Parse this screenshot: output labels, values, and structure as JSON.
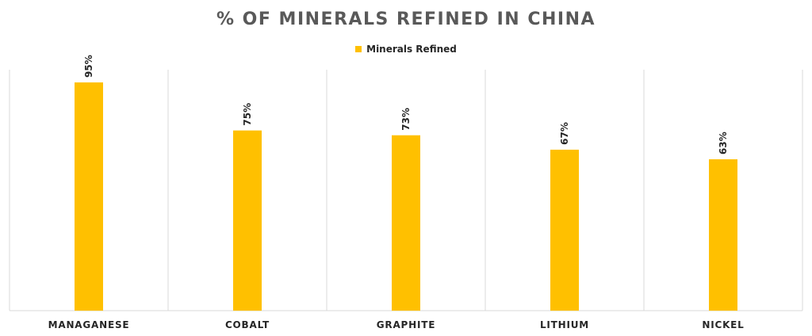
{
  "chart_data": {
    "type": "bar",
    "title": "% OF MINERALS REFINED IN CHINA",
    "categories": [
      "MANAGANESE",
      "COBALT",
      "GRAPHITE",
      "LITHIUM",
      "NICKEL"
    ],
    "series": [
      {
        "name": "Minerals Refined",
        "values": [
          95,
          75,
          73,
          67,
          63
        ],
        "labels": [
          "95%",
          "75%",
          "73%",
          "67%",
          "63%"
        ],
        "color": "#FFC000"
      }
    ],
    "ylim": [
      0,
      100
    ],
    "xlabel": "",
    "ylabel": "",
    "grid": "vertical category separators",
    "legend": "top-center"
  }
}
